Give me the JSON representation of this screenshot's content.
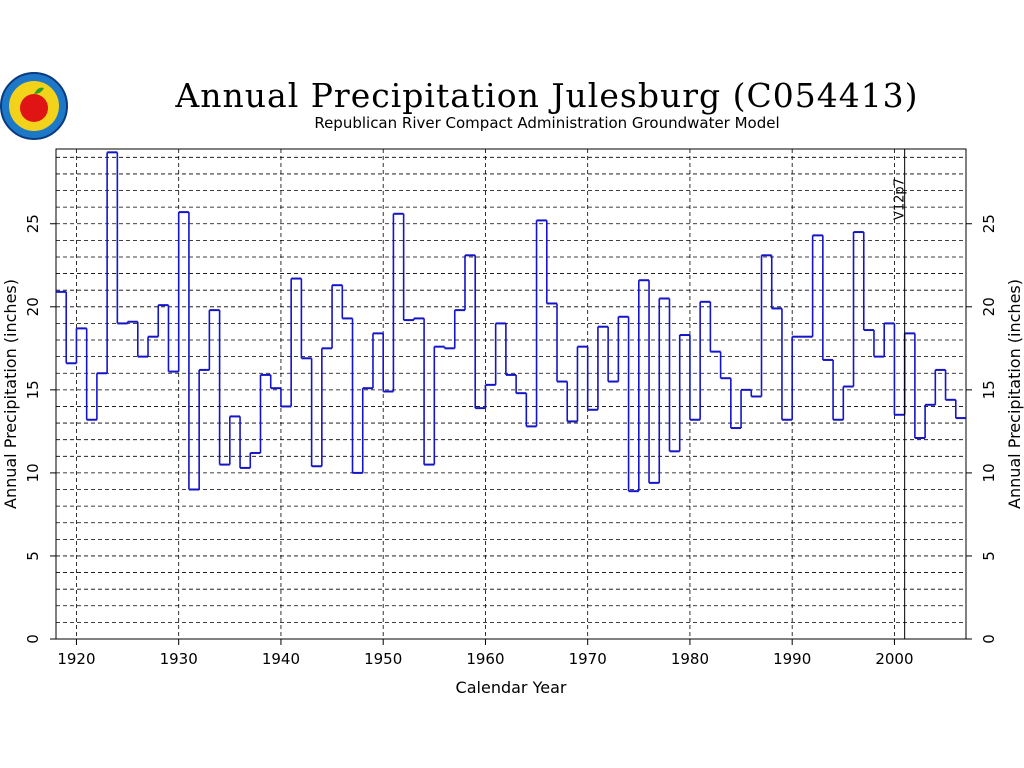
{
  "chart_data": {
    "type": "line",
    "step": true,
    "title": "Annual Precipitation Julesburg (C054413)",
    "subtitle": "Republican River Compact Administration Groundwater Model",
    "xlabel": "Calendar Year",
    "ylabel": "Annual Precipitation (inches)",
    "ylabel_right": "Annual Precipitation (inches)",
    "xlim": [
      1918,
      2007
    ],
    "ylim": [
      0,
      29.5
    ],
    "x_ticks": [
      1920,
      1930,
      1940,
      1950,
      1960,
      1970,
      1980,
      1990,
      2000
    ],
    "y_ticks": [
      0,
      5,
      10,
      15,
      20,
      25
    ],
    "grid": true,
    "series_color": "#1414c8",
    "annotation": {
      "label": "V12p7",
      "x": 2001
    },
    "x": [
      1918,
      1919,
      1920,
      1921,
      1922,
      1923,
      1924,
      1925,
      1926,
      1927,
      1928,
      1929,
      1930,
      1931,
      1932,
      1933,
      1934,
      1935,
      1936,
      1937,
      1938,
      1939,
      1940,
      1941,
      1942,
      1943,
      1944,
      1945,
      1946,
      1947,
      1948,
      1949,
      1950,
      1951,
      1952,
      1953,
      1954,
      1955,
      1956,
      1957,
      1958,
      1959,
      1960,
      1961,
      1962,
      1963,
      1964,
      1965,
      1966,
      1967,
      1968,
      1969,
      1970,
      1971,
      1972,
      1973,
      1974,
      1975,
      1976,
      1977,
      1978,
      1979,
      1980,
      1981,
      1982,
      1983,
      1984,
      1985,
      1986,
      1987,
      1988,
      1989,
      1990,
      1991,
      1992,
      1993,
      1994,
      1995,
      1996,
      1997,
      1998,
      1999,
      2000,
      2001,
      2002,
      2003,
      2004,
      2005,
      2006
    ],
    "y": [
      20.9,
      16.6,
      18.7,
      13.2,
      16.0,
      29.3,
      19.0,
      19.1,
      17.0,
      18.2,
      20.1,
      16.1,
      25.7,
      9.0,
      16.2,
      19.8,
      10.5,
      13.4,
      10.3,
      11.2,
      15.9,
      15.1,
      14.0,
      21.7,
      16.9,
      10.4,
      17.5,
      21.3,
      19.3,
      10.0,
      15.1,
      18.4,
      14.9,
      25.6,
      19.2,
      19.3,
      10.5,
      17.6,
      17.5,
      19.8,
      23.1,
      13.9,
      15.3,
      19.0,
      15.9,
      14.8,
      12.8,
      25.2,
      20.2,
      15.5,
      13.1,
      17.6,
      13.8,
      18.8,
      15.5,
      19.4,
      8.9,
      21.6,
      9.4,
      20.5,
      11.3,
      18.3,
      13.2,
      20.3,
      17.3,
      15.7,
      12.7,
      15.0,
      14.6,
      23.1,
      19.9,
      13.2,
      18.2,
      18.2,
      24.3,
      16.8,
      13.2,
      15.2,
      24.5,
      18.6,
      17.0,
      19.0,
      13.5,
      18.4,
      12.1,
      14.1,
      16.2,
      14.4,
      13.3
    ]
  }
}
